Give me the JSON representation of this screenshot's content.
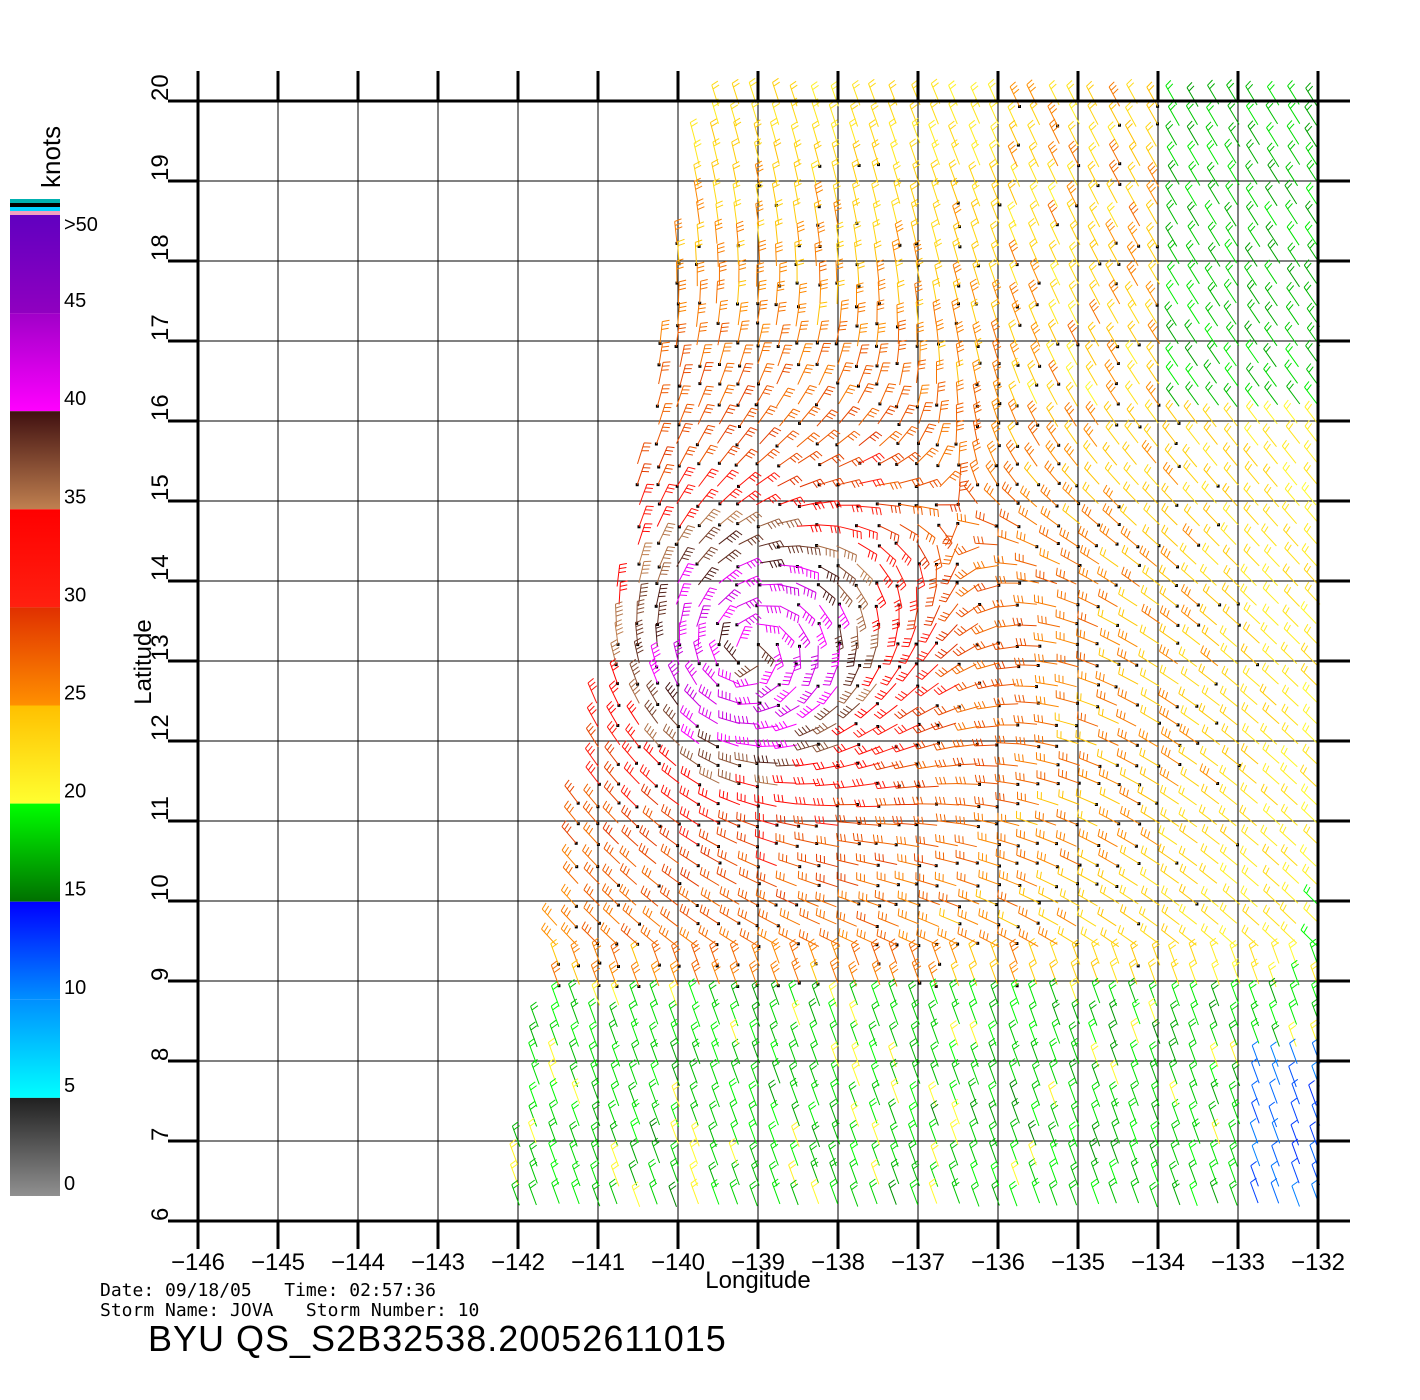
{
  "legend": {
    "unit": "knots",
    "labels": [
      ">50",
      "45",
      "40",
      "35",
      "30",
      "25",
      "20",
      "15",
      "10",
      "5",
      "0"
    ],
    "values": [
      50,
      45,
      40,
      35,
      30,
      25,
      20,
      15,
      10,
      5,
      0
    ],
    "top_swatches": [
      "#00b0b0",
      "#000000",
      "#00d0ff",
      "#f0a0c0"
    ],
    "bands": [
      {
        "from": 45,
        "to": 50,
        "top": "#6000c0",
        "bottom": "#9000c0"
      },
      {
        "from": 40,
        "to": 45,
        "top": "#a000c8",
        "bottom": "#ff00ff"
      },
      {
        "from": 35,
        "to": 40,
        "top": "#401010",
        "bottom": "#c08050"
      },
      {
        "from": 30,
        "to": 35,
        "top": "#ff0000",
        "bottom": "#ff2010"
      },
      {
        "from": 25,
        "to": 30,
        "top": "#e03000",
        "bottom": "#ff9000"
      },
      {
        "from": 20,
        "to": 25,
        "top": "#ffc000",
        "bottom": "#ffff30"
      },
      {
        "from": 15,
        "to": 20,
        "top": "#00ff00",
        "bottom": "#007000"
      },
      {
        "from": 10,
        "to": 15,
        "top": "#0000ff",
        "bottom": "#0090ff"
      },
      {
        "from": 5,
        "to": 10,
        "top": "#0090ff",
        "bottom": "#00ffff"
      },
      {
        "from": 0,
        "to": 5,
        "top": "#202020",
        "bottom": "#909090"
      }
    ]
  },
  "axes": {
    "xlabel": "Longitude",
    "ylabel": "Latitude",
    "x_range": [
      -146,
      -132
    ],
    "y_range": [
      6,
      20
    ],
    "x_ticks": [
      -146,
      -145,
      -144,
      -143,
      -142,
      -141,
      -140,
      -139,
      -138,
      -137,
      -136,
      -135,
      -134,
      -133,
      -132
    ],
    "x_tick_labels": [
      "−146",
      "−145",
      "−144",
      "−143",
      "−142",
      "−141",
      "−140",
      "−139",
      "−138",
      "−137",
      "−136",
      "−135",
      "−134",
      "−133",
      "−132"
    ],
    "y_ticks": [
      6,
      7,
      8,
      9,
      10,
      11,
      12,
      13,
      14,
      15,
      16,
      17,
      18,
      19,
      20
    ],
    "y_tick_labels": [
      "6",
      "7",
      "8",
      "9",
      "10",
      "11",
      "12",
      "13",
      "14",
      "15",
      "16",
      "17",
      "18",
      "19",
      "20"
    ],
    "grid": true
  },
  "wind_field": {
    "swath_corners_latlon": [
      [
        20,
        -139.7
      ],
      [
        20,
        -131.9
      ],
      [
        6,
        -131.9
      ],
      [
        6,
        -142.2
      ]
    ],
    "storm_center": {
      "lon": -139.1,
      "lat": 13.1
    },
    "rain_flag_color": "#000000"
  },
  "footer": {
    "date_line": "Date: 09/18/05   Time: 02:57:36",
    "storm_line": "Storm Name: JOVA   Storm Number: 10",
    "file_id": "BYU QS_S2B32538.20052611015"
  }
}
